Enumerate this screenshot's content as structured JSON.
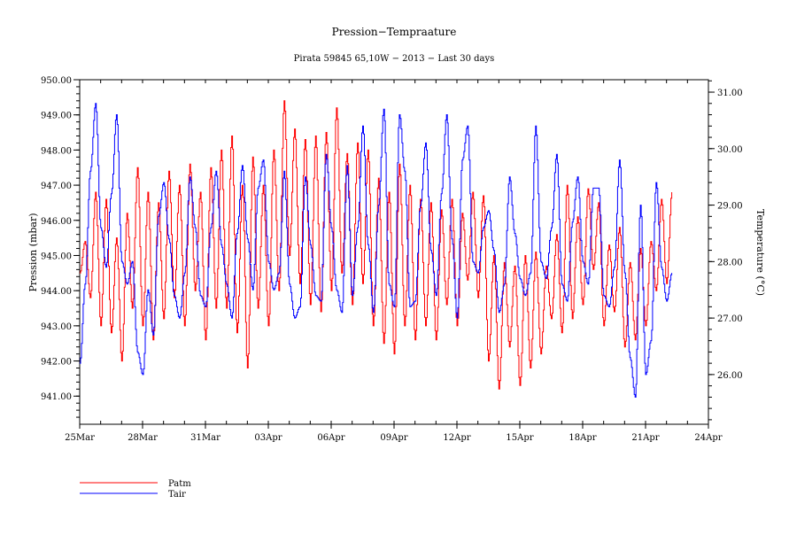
{
  "chart_data": {
    "type": "line",
    "title": "Pression−Tempraature",
    "subtitle": "Pirata 59845 65,10W − 2013 − Last 30 days",
    "xlabel": "",
    "ylabel": "Pression (mbar)",
    "y2label": "Temperature (°C)",
    "xlim_days": [
      0,
      30
    ],
    "ylim": [
      940.2,
      950.0
    ],
    "y2lim": [
      25.12,
      31.22
    ],
    "x_ticks": [
      {
        "day": 0,
        "label": "25Mar"
      },
      {
        "day": 3,
        "label": "28Mar"
      },
      {
        "day": 6,
        "label": "31Mar"
      },
      {
        "day": 9,
        "label": "03Apr"
      },
      {
        "day": 12,
        "label": "06Apr"
      },
      {
        "day": 15,
        "label": "09Apr"
      },
      {
        "day": 18,
        "label": "12Apr"
      },
      {
        "day": 21,
        "label": "15Apr"
      },
      {
        "day": 24,
        "label": "18Apr"
      },
      {
        "day": 27,
        "label": "21Apr"
      },
      {
        "day": 30,
        "label": "24Apr"
      }
    ],
    "y_ticks": [
      {
        "value": 950,
        "label": "950.00"
      },
      {
        "value": 949,
        "label": "949.00"
      },
      {
        "value": 948,
        "label": "948.00"
      },
      {
        "value": 947,
        "label": "947.00"
      },
      {
        "value": 946,
        "label": "946.00"
      },
      {
        "value": 945,
        "label": "945.00"
      },
      {
        "value": 944,
        "label": "944.00"
      },
      {
        "value": 943,
        "label": "943.00"
      },
      {
        "value": 942,
        "label": "942.00"
      },
      {
        "value": 941,
        "label": "941.00"
      }
    ],
    "y2_ticks": [
      {
        "value": 31,
        "label": "31.00"
      },
      {
        "value": 30,
        "label": "30.00"
      },
      {
        "value": 29,
        "label": "29.00"
      },
      {
        "value": 28,
        "label": "28.00"
      },
      {
        "value": 27,
        "label": "27.00"
      },
      {
        "value": 26,
        "label": "26.00"
      }
    ],
    "legend_position": "bottom-left",
    "series": [
      {
        "name": "Patm",
        "axis": "left",
        "color": "#ff0000",
        "x_step_days": 0.25,
        "values": [
          944.5,
          945.4,
          943.8,
          946.8,
          943.0,
          946.6,
          942.8,
          945.5,
          942.0,
          946.2,
          943.5,
          947.5,
          943.0,
          946.8,
          942.6,
          946.5,
          943.2,
          947.4,
          943.8,
          947.0,
          943.0,
          947.6,
          944.0,
          946.8,
          942.6,
          947.5,
          943.5,
          948.0,
          943.5,
          948.4,
          942.8,
          947.0,
          941.8,
          947.8,
          943.5,
          947.0,
          943.0,
          948.0,
          944.0,
          949.4,
          945.0,
          948.6,
          944.2,
          948.3,
          943.6,
          948.4,
          943.4,
          948.5,
          944.0,
          949.2,
          944.5,
          947.9,
          943.6,
          948.2,
          944.2,
          948.0,
          943.0,
          947.2,
          942.5,
          946.8,
          942.2,
          947.6,
          943.0,
          947.0,
          942.6,
          946.6,
          943.0,
          946.5,
          942.6,
          946.3,
          943.6,
          946.6,
          943.0,
          946.2,
          944.3,
          946.8,
          943.8,
          946.7,
          942.0,
          945.0,
          941.2,
          944.8,
          942.4,
          944.7,
          941.3,
          945.0,
          941.8,
          945.1,
          942.2,
          944.7,
          943.2,
          945.6,
          942.8,
          947.0,
          943.2,
          946.1,
          943.6,
          946.9,
          944.6,
          946.5,
          943.0,
          945.3,
          943.4,
          945.8,
          942.4,
          944.8,
          942.6,
          945.2,
          943.0,
          945.4,
          944.0,
          946.6,
          944.2,
          946.8
        ]
      },
      {
        "name": "Tair",
        "axis": "right",
        "color": "#0000ff",
        "x_step_days": 0.25,
        "values": [
          26.2,
          27.6,
          29.6,
          30.8,
          28.6,
          27.9,
          29.2,
          30.6,
          28.0,
          27.6,
          28.0,
          26.4,
          26.0,
          27.5,
          26.7,
          28.8,
          29.4,
          28.4,
          27.4,
          27.0,
          27.8,
          29.5,
          28.6,
          27.4,
          27.2,
          28.6,
          29.6,
          28.3,
          27.6,
          27.0,
          28.5,
          29.7,
          28.4,
          27.5,
          29.3,
          29.8,
          28.0,
          27.5,
          27.8,
          29.6,
          27.6,
          27.0,
          27.2,
          29.5,
          28.3,
          27.4,
          27.3,
          29.9,
          28.6,
          27.5,
          27.1,
          29.7,
          27.4,
          28.6,
          30.4,
          28.3,
          27.1,
          29.0,
          30.7,
          27.6,
          27.2,
          30.6,
          29.6,
          27.2,
          27.3,
          29.0,
          30.1,
          28.2,
          27.4,
          29.2,
          30.6,
          28.4,
          27.0,
          29.8,
          30.4,
          28.0,
          27.8,
          28.6,
          28.9,
          28.2,
          27.1,
          27.6,
          29.5,
          28.5,
          27.7,
          27.4,
          27.8,
          30.4,
          28.0,
          27.7,
          28.6,
          29.9,
          27.6,
          27.3,
          28.7,
          29.5,
          28.0,
          27.6,
          29.3,
          29.3,
          27.4,
          27.2,
          27.9,
          29.8,
          27.8,
          26.3,
          25.6,
          29.0,
          26.0,
          26.6,
          29.4,
          27.9,
          27.3,
          27.8
        ]
      }
    ]
  }
}
